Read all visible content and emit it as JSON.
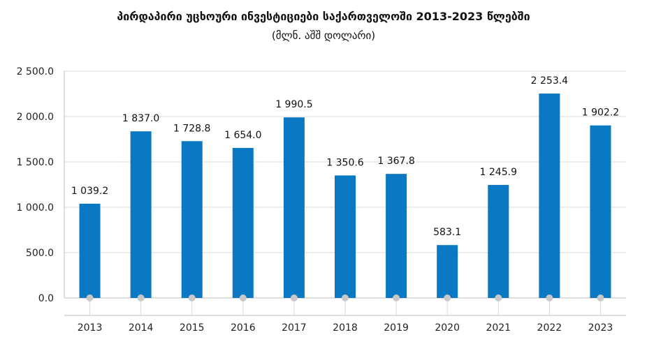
{
  "chart_data": {
    "type": "bar",
    "title": "პირდაპირი უცხოური ინვესტიციები საქართველოში  2013-2023 წლებში",
    "subtitle": "(მლნ. აშშ დოლარი)",
    "xlabel": "",
    "ylabel": "",
    "categories": [
      "2013",
      "2014",
      "2015",
      "2016",
      "2017",
      "2018",
      "2019",
      "2020",
      "2021",
      "2022",
      "2023"
    ],
    "values": [
      1039.2,
      1837.0,
      1728.8,
      1654.0,
      1990.5,
      1350.6,
      1367.8,
      583.1,
      1245.9,
      2253.4,
      1902.2
    ],
    "value_labels": [
      "1 039.2",
      "1 837.0",
      "1 728.8",
      "1 654.0",
      "1 990.5",
      "1 350.6",
      "1 367.8",
      "583.1",
      "1 245.9",
      "2 253.4",
      "1 902.2"
    ],
    "y_ticks": [
      0,
      500,
      1000,
      1500,
      2000,
      2500
    ],
    "y_tick_labels": [
      "0.0",
      "500.0",
      "1 000.0",
      "1 500.0",
      "2 000.0",
      "2 500.0"
    ],
    "ylim": [
      0,
      2500
    ],
    "grid": true,
    "legend": "none",
    "colors": {
      "bar": "#0a78c2",
      "grid": "#d9d9d9",
      "marker": "#c8c8c8",
      "axis": "#bfbfbf"
    }
  }
}
